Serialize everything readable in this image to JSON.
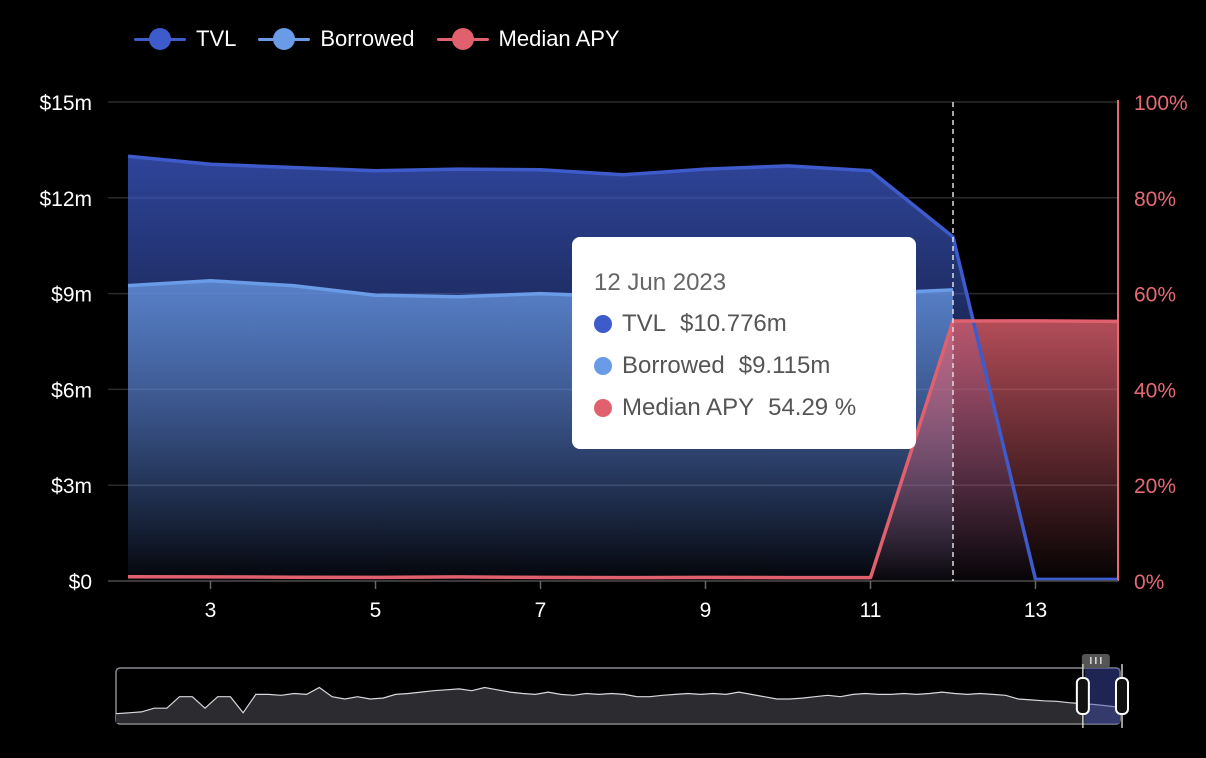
{
  "legend": {
    "tvl_label": "TVL",
    "borrowed_label": "Borrowed",
    "apy_label": "Median APY"
  },
  "colors": {
    "tvl": "#3e5bcc",
    "borrowed": "#6a9be6",
    "apy": "#e0606e",
    "grid": "#2a2a2e",
    "axis_right": "#e56a76"
  },
  "tooltip": {
    "date": "12 Jun 2023",
    "tvl_label": "TVL",
    "tvl_value": "$10.776m",
    "borrowed_label": "Borrowed",
    "borrowed_value": "$9.115m",
    "apy_label": "Median APY",
    "apy_value": "54.29 %"
  },
  "chart_data": {
    "type": "area",
    "x": [
      2,
      3,
      4,
      5,
      6,
      7,
      8,
      9,
      10,
      11,
      12,
      13,
      14
    ],
    "x_tick_labels": [
      "3",
      "5",
      "7",
      "9",
      "11",
      "13"
    ],
    "x_ticks": [
      3,
      5,
      7,
      9,
      11,
      13
    ],
    "series": [
      {
        "name": "TVL",
        "axis": "left",
        "values": [
          13.3,
          13.05,
          12.95,
          12.85,
          12.9,
          12.88,
          12.72,
          12.9,
          13.0,
          12.85,
          10.776,
          0.05,
          0.05
        ]
      },
      {
        "name": "Borrowed",
        "axis": "left",
        "values": [
          9.25,
          9.4,
          9.25,
          8.95,
          8.9,
          9.0,
          8.9,
          9.0,
          9.1,
          9.0,
          9.115,
          null,
          null
        ]
      },
      {
        "name": "Median APY",
        "axis": "right",
        "values": [
          0.9,
          0.85,
          0.8,
          0.75,
          0.85,
          0.75,
          0.7,
          0.75,
          0.7,
          0.7,
          54.29,
          54.3,
          54.2
        ]
      }
    ],
    "y_left": {
      "ylim": [
        0,
        15
      ],
      "ticks": [
        0,
        3,
        6,
        9,
        12,
        15
      ],
      "tick_labels": [
        "$0",
        "$3m",
        "$6m",
        "$9m",
        "$12m",
        "$15m"
      ]
    },
    "y_right": {
      "ylim": [
        0,
        100
      ],
      "ticks": [
        0,
        20,
        40,
        60,
        80,
        100
      ],
      "tick_labels": [
        "0%",
        "20%",
        "40%",
        "60%",
        "80%",
        "100%"
      ]
    },
    "hover_x": 12,
    "grid": true,
    "legend_position": "top-left",
    "overview": {
      "values": [
        0.18,
        0.2,
        0.22,
        0.3,
        0.3,
        0.55,
        0.55,
        0.3,
        0.55,
        0.55,
        0.2,
        0.6,
        0.6,
        0.58,
        0.62,
        0.6,
        0.75,
        0.55,
        0.5,
        0.55,
        0.5,
        0.52,
        0.6,
        0.62,
        0.65,
        0.68,
        0.7,
        0.72,
        0.68,
        0.75,
        0.7,
        0.65,
        0.62,
        0.6,
        0.65,
        0.6,
        0.58,
        0.62,
        0.6,
        0.62,
        0.6,
        0.55,
        0.55,
        0.58,
        0.6,
        0.62,
        0.6,
        0.62,
        0.6,
        0.65,
        0.6,
        0.55,
        0.5,
        0.5,
        0.52,
        0.55,
        0.58,
        0.55,
        0.6,
        0.62,
        0.6,
        0.6,
        0.62,
        0.6,
        0.62,
        0.65,
        0.62,
        0.6,
        0.62,
        0.6,
        0.58,
        0.5,
        0.48,
        0.46,
        0.45,
        0.42,
        0.4,
        0.38,
        0.35,
        0.32
      ],
      "window_start": 0.965,
      "window_end": 1.0
    }
  }
}
